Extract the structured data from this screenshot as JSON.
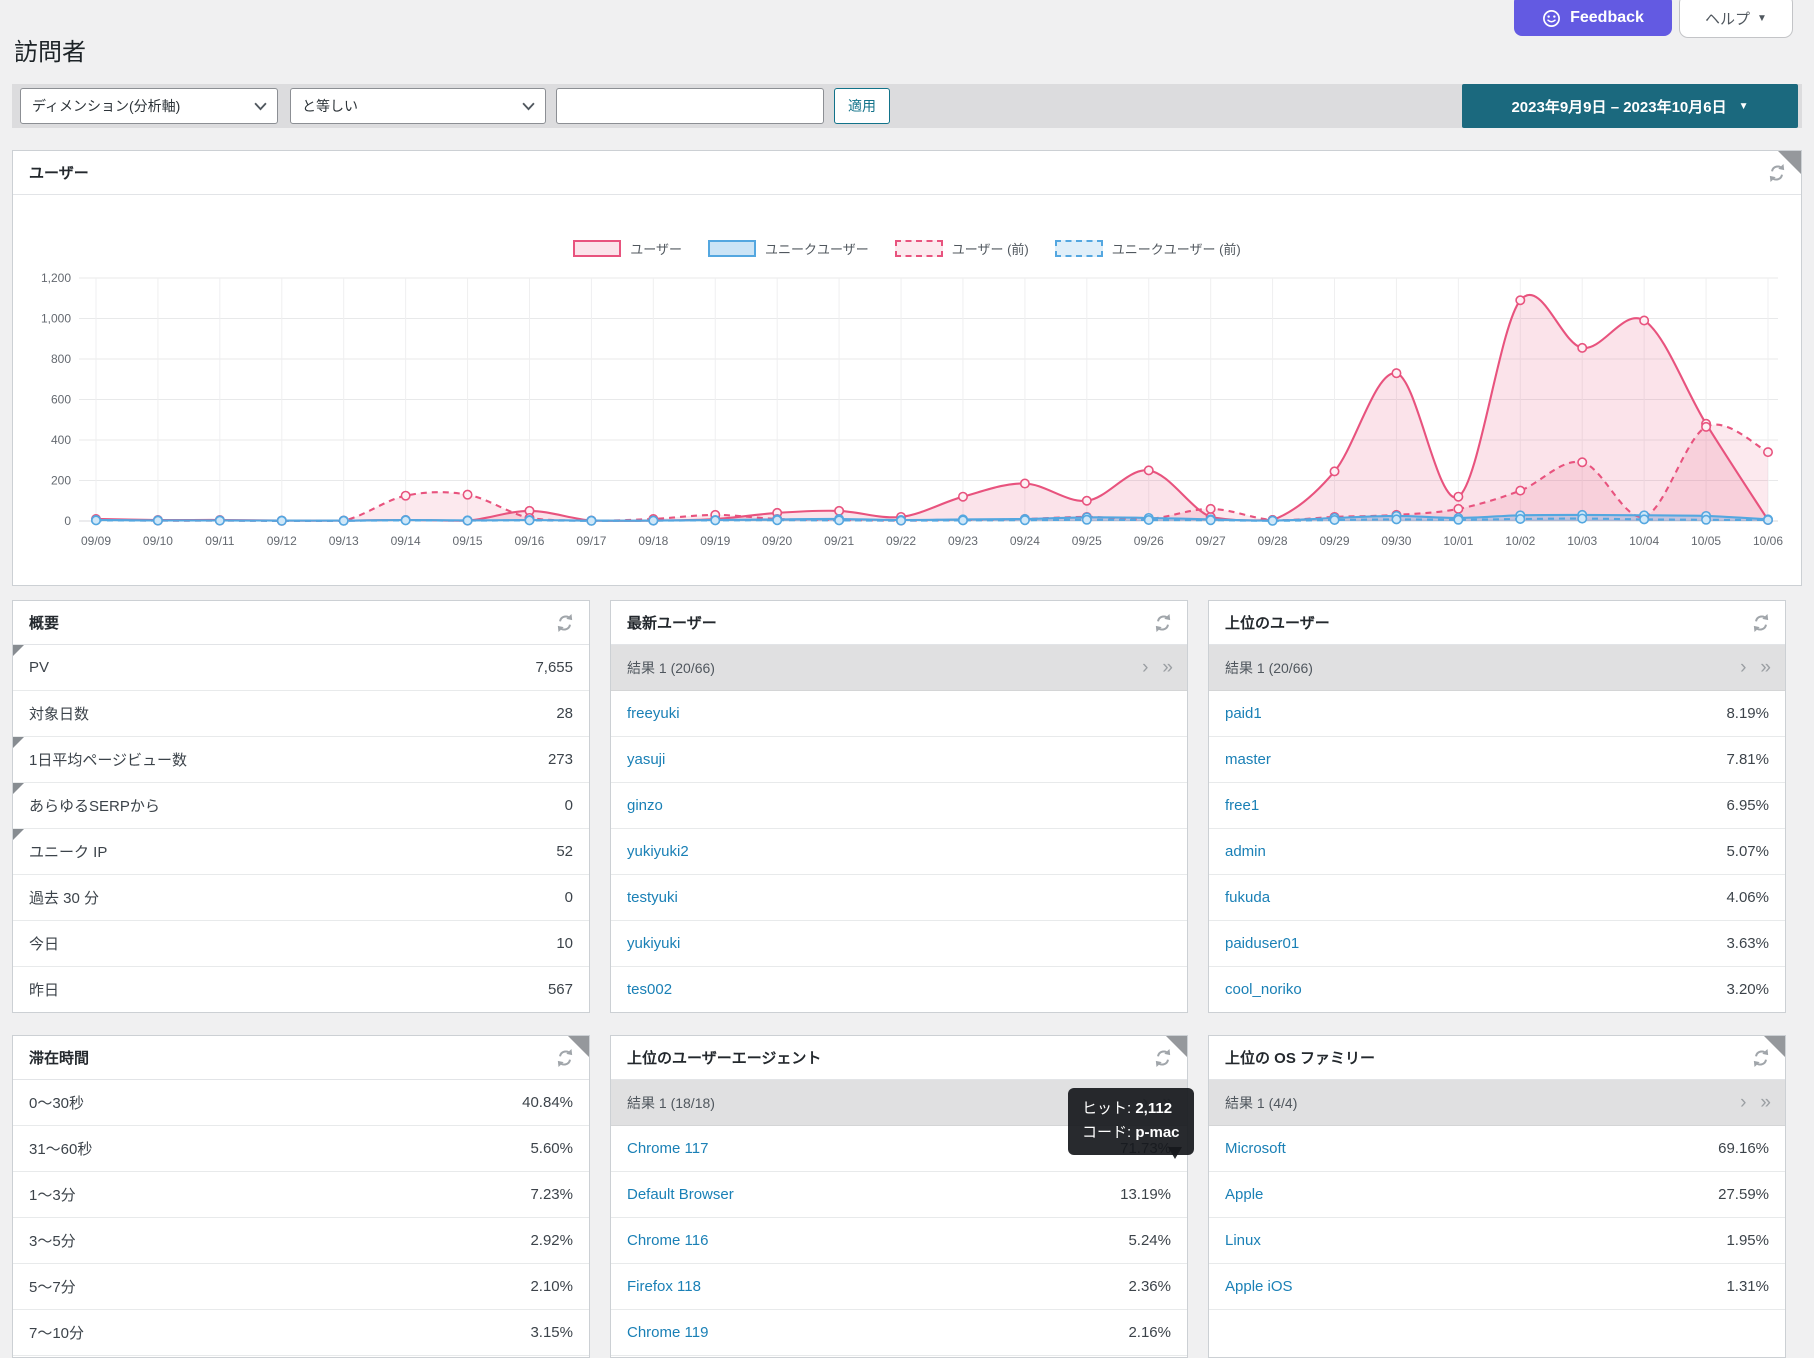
{
  "page": {
    "title": "訪問者"
  },
  "ui": {
    "next_page": "›",
    "last_page": "»",
    "caret_down": "▼"
  },
  "header": {
    "feedback_label": "Feedback",
    "help_label": "ヘルプ",
    "feedback_color": "#635ae2"
  },
  "filter": {
    "dimension_select": "ディメンション(分析軸)",
    "operator_select": "と等しい",
    "input_value": "",
    "apply_label": "適用",
    "date_range": "2023年9月9日 – 2023年10月6日",
    "date_button_color": "#1b697e"
  },
  "chart_panel": {
    "title": "ユーザー"
  },
  "chart_data": {
    "type": "area",
    "x": [
      "09/09",
      "09/10",
      "09/11",
      "09/12",
      "09/13",
      "09/14",
      "09/15",
      "09/16",
      "09/17",
      "09/18",
      "09/19",
      "09/20",
      "09/21",
      "09/22",
      "09/23",
      "09/24",
      "09/25",
      "09/26",
      "09/27",
      "09/28",
      "09/29",
      "09/30",
      "10/01",
      "10/02",
      "10/03",
      "10/04",
      "10/05",
      "10/06"
    ],
    "ylim": [
      0,
      1200
    ],
    "yticks": [
      "0",
      "200",
      "400",
      "600",
      "800",
      "1,000",
      "1,200"
    ],
    "grid": true,
    "legend_position": "top",
    "series": [
      {
        "name": "ユーザー",
        "color": "#e8537e",
        "fill": "rgba(232,83,126,0.16)",
        "dashed": false,
        "values": [
          10,
          5,
          5,
          2,
          2,
          5,
          2,
          50,
          2,
          2,
          10,
          40,
          50,
          20,
          120,
          185,
          100,
          250,
          20,
          5,
          245,
          730,
          120,
          1090,
          855,
          990,
          480,
          5
        ]
      },
      {
        "name": "ユニークユーザー",
        "color": "#54a7e0",
        "fill": "rgba(84,167,224,0.30)",
        "dashed": false,
        "values": [
          5,
          3,
          3,
          2,
          2,
          5,
          3,
          5,
          2,
          2,
          5,
          8,
          10,
          5,
          8,
          10,
          18,
          15,
          8,
          2,
          15,
          25,
          15,
          28,
          30,
          28,
          25,
          8
        ]
      },
      {
        "name": "ユーザー (前)",
        "color": "#e8537e",
        "fill": "rgba(232,83,126,0.13)",
        "dashed": true,
        "values": [
          5,
          2,
          2,
          1,
          2,
          125,
          130,
          15,
          2,
          10,
          30,
          10,
          5,
          2,
          5,
          10,
          20,
          10,
          60,
          5,
          20,
          30,
          60,
          150,
          290,
          20,
          465,
          340
        ]
      },
      {
        "name": "ユニークユーザー (前)",
        "color": "#54a7e0",
        "fill": "rgba(84,167,224,0.18)",
        "dashed": true,
        "values": [
          3,
          2,
          2,
          1,
          1,
          3,
          2,
          3,
          1,
          2,
          3,
          4,
          3,
          2,
          3,
          4,
          6,
          5,
          4,
          1,
          5,
          8,
          6,
          10,
          12,
          8,
          6,
          5
        ]
      }
    ]
  },
  "panels": {
    "overview": {
      "title": "概要",
      "rows": [
        {
          "label": "PV",
          "value": "7,655",
          "fold": true
        },
        {
          "label": "対象日数",
          "value": "28"
        },
        {
          "label": "1日平均ページビュー数",
          "value": "273",
          "fold": true
        },
        {
          "label": "あらゆるSERPから",
          "value": "0",
          "fold": true
        },
        {
          "label": "ユニーク IP",
          "value": "52",
          "fold": true
        },
        {
          "label": "過去 30 分",
          "value": "0"
        },
        {
          "label": "今日",
          "value": "10"
        },
        {
          "label": "昨日",
          "value": "567"
        }
      ]
    },
    "latest_users": {
      "title": "最新ユーザー",
      "pagination": "結果 1 (20/66)",
      "rows": [
        {
          "label": "freeyuki",
          "link": true
        },
        {
          "label": "yasuji",
          "link": true
        },
        {
          "label": "ginzo",
          "link": true
        },
        {
          "label": "yukiyuki2",
          "link": true
        },
        {
          "label": "testyuki",
          "link": true
        },
        {
          "label": "yukiyuki",
          "link": true
        },
        {
          "label": "tes002",
          "link": true
        }
      ]
    },
    "top_users": {
      "title": "上位のユーザー",
      "pagination": "結果 1 (20/66)",
      "rows": [
        {
          "label": "paid1",
          "value": "8.19%",
          "link": true
        },
        {
          "label": "master",
          "value": "7.81%",
          "link": true
        },
        {
          "label": "free1",
          "value": "6.95%",
          "link": true
        },
        {
          "label": "admin",
          "value": "5.07%",
          "link": true
        },
        {
          "label": "fukuda",
          "value": "4.06%",
          "link": true
        },
        {
          "label": "paiduser01",
          "value": "3.63%",
          "link": true
        },
        {
          "label": "cool_noriko",
          "value": "3.20%",
          "link": true
        }
      ]
    },
    "duration": {
      "title": "滞在時間",
      "rows": [
        {
          "label": "0〜30秒",
          "value": "40.84%"
        },
        {
          "label": "31〜60秒",
          "value": "5.60%"
        },
        {
          "label": "1〜3分",
          "value": "7.23%"
        },
        {
          "label": "3〜5分",
          "value": "2.92%"
        },
        {
          "label": "5〜7分",
          "value": "2.10%"
        },
        {
          "label": "7〜10分",
          "value": "3.15%"
        }
      ]
    },
    "user_agents": {
      "title": "上位のユーザーエージェント",
      "pagination": "結果 1 (18/18)",
      "rows": [
        {
          "label": "Chrome 117",
          "value": "71.73%",
          "link": true
        },
        {
          "label": "Default Browser",
          "value": "13.19%",
          "link": true
        },
        {
          "label": "Chrome 116",
          "value": "5.24%",
          "link": true
        },
        {
          "label": "Firefox 118",
          "value": "2.36%",
          "link": true
        },
        {
          "label": "Chrome 119",
          "value": "2.16%",
          "link": true
        }
      ]
    },
    "os_families": {
      "title": "上位の OS ファミリー",
      "pagination": "結果 1 (4/4)",
      "rows": [
        {
          "label": "Microsoft",
          "value": "69.16%",
          "link": true
        },
        {
          "label": "Apple",
          "value": "27.59%",
          "link": true
        },
        {
          "label": "Linux",
          "value": "1.95%",
          "link": true
        },
        {
          "label": "Apple iOS",
          "value": "1.31%",
          "link": true
        }
      ]
    }
  },
  "tooltip": {
    "hits_label": "ヒット:",
    "hits_value": "2,112",
    "code_label": "コード:",
    "code_value": "p-mac"
  }
}
